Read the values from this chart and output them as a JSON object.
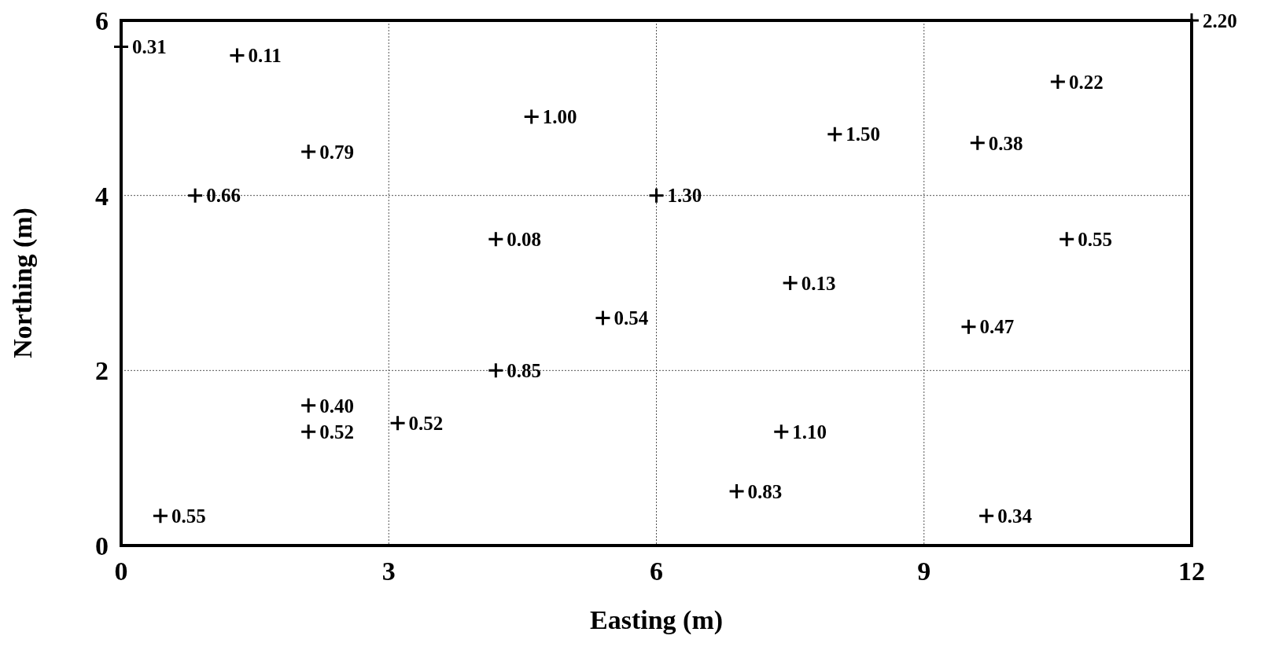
{
  "chart_data": {
    "type": "scatter",
    "xlabel": "Easting (m)",
    "ylabel": "Northing (m)",
    "x": [
      0,
      1.3,
      4.6,
      2.1,
      0.83,
      8.0,
      10.5,
      9.6,
      6.0,
      4.2,
      10.6,
      7.5,
      5.4,
      9.5,
      4.2,
      2.1,
      2.1,
      3.1,
      7.4,
      6.9,
      0.44,
      9.7,
      12
    ],
    "values": [
      5.7,
      5.6,
      4.9,
      4.5,
      4.0,
      4.7,
      5.3,
      4.6,
      4.0,
      3.5,
      3.5,
      3.0,
      2.6,
      2.5,
      2.0,
      1.6,
      1.3,
      1.4,
      1.3,
      0.62,
      0.34,
      0.34,
      6.0
    ],
    "annotations": [
      {
        "text": "0.31",
        "x": 0,
        "y": 5.7
      },
      {
        "text": "0.11",
        "x": 1.3,
        "y": 5.6
      },
      {
        "text": "1.00",
        "x": 4.6,
        "y": 4.9
      },
      {
        "text": "0.79",
        "x": 2.1,
        "y": 4.5
      },
      {
        "text": "0.66",
        "x": 0.83,
        "y": 4.0
      },
      {
        "text": "1.50",
        "x": 8.0,
        "y": 4.7
      },
      {
        "text": "0.22",
        "x": 10.5,
        "y": 5.3
      },
      {
        "text": "0.38",
        "x": 9.6,
        "y": 4.6
      },
      {
        "text": "1.30",
        "x": 6.0,
        "y": 4.0
      },
      {
        "text": "0.08",
        "x": 4.2,
        "y": 3.5
      },
      {
        "text": "0.55",
        "x": 10.6,
        "y": 3.5
      },
      {
        "text": "0.13",
        "x": 7.5,
        "y": 3.0
      },
      {
        "text": "0.54",
        "x": 5.4,
        "y": 2.6
      },
      {
        "text": "0.47",
        "x": 9.5,
        "y": 2.5
      },
      {
        "text": "0.85",
        "x": 4.2,
        "y": 2.0
      },
      {
        "text": "0.40",
        "x": 2.1,
        "y": 1.6
      },
      {
        "text": "0.52",
        "x": 2.1,
        "y": 1.3
      },
      {
        "text": "0.52",
        "x": 3.1,
        "y": 1.4
      },
      {
        "text": "1.10",
        "x": 7.4,
        "y": 1.3
      },
      {
        "text": "0.83",
        "x": 6.9,
        "y": 0.62
      },
      {
        "text": "0.55",
        "x": 0.44,
        "y": 0.34
      },
      {
        "text": "0.34",
        "x": 9.7,
        "y": 0.34
      },
      {
        "text": "2.20",
        "x": 12,
        "y": 6.0
      }
    ],
    "color": "#000000",
    "marker": "cross",
    "grid": true,
    "xlim": [
      0,
      12
    ],
    "xticks": [
      0,
      3,
      6,
      9,
      12
    ],
    "ylim": [
      0,
      6
    ],
    "yticks": [
      0,
      2,
      4,
      6
    ]
  }
}
